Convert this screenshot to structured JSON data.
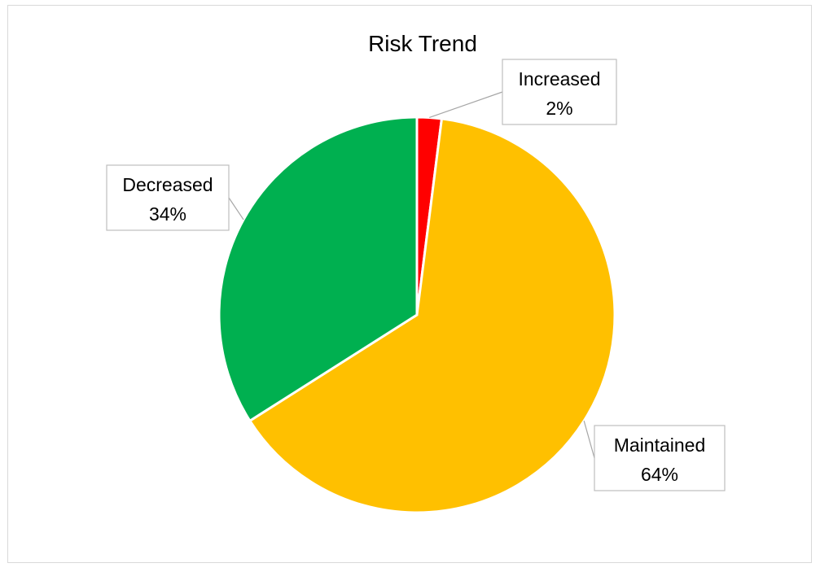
{
  "chart_data": {
    "type": "pie",
    "title": "Risk Trend",
    "slices": [
      {
        "label": "Increased",
        "value": 2,
        "color": "#FF0000",
        "display": "2%"
      },
      {
        "label": "Maintained",
        "value": 64,
        "color": "#FFC000",
        "display": "64%"
      },
      {
        "label": "Decreased",
        "value": 34,
        "color": "#00B050",
        "display": "34%"
      }
    ],
    "start_angle": "12 o'clock",
    "direction": "clockwise",
    "legend": "none",
    "data_labels": "callouts with category name and percentage"
  }
}
